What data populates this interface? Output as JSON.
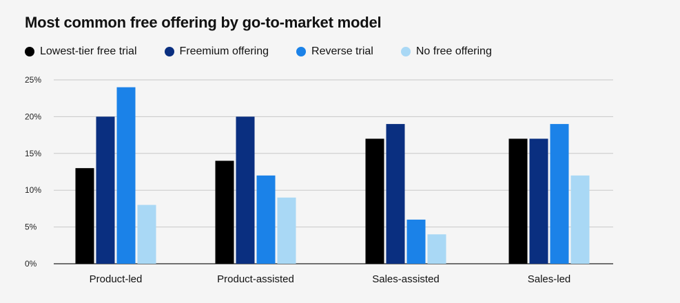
{
  "chart_data": {
    "type": "bar",
    "title": "Most common free offering by go-to-market model",
    "categories": [
      "Product-led",
      "Product-assisted",
      "Sales-assisted",
      "Sales-led"
    ],
    "series": [
      {
        "name": "Lowest-tier free trial",
        "color": "#000000",
        "values": [
          13,
          14,
          17,
          17
        ]
      },
      {
        "name": "Freemium offering",
        "color": "#0a2f80",
        "values": [
          20,
          20,
          19,
          17
        ]
      },
      {
        "name": "Reverse trial",
        "color": "#1b82e8",
        "values": [
          24,
          12,
          6,
          19
        ]
      },
      {
        "name": "No free offering",
        "color": "#a9d8f5",
        "values": [
          8,
          9,
          4,
          12
        ]
      }
    ],
    "ylim": [
      0,
      25
    ],
    "yticks": [
      0,
      5,
      10,
      15,
      20,
      25
    ],
    "ytick_labels": [
      "0%",
      "5%",
      "10%",
      "15%",
      "20%",
      "25%"
    ],
    "xlabel": "",
    "ylabel": "",
    "grid": true,
    "legend_position": "top-left"
  }
}
